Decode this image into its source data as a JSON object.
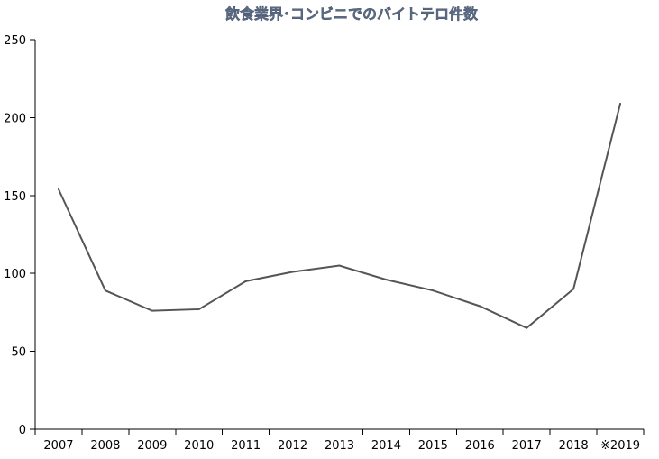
{
  "chart_data": {
    "type": "line",
    "title": "飲食業界･コンビニでのバイトテロ件数",
    "xlabel": "",
    "ylabel": "",
    "categories": [
      "2007",
      "2008",
      "2009",
      "2010",
      "2011",
      "2012",
      "2013",
      "2014",
      "2015",
      "2016",
      "2017",
      "2018",
      "※2019"
    ],
    "series": [
      {
        "values": [
          154,
          89,
          76,
          77,
          95,
          101,
          105,
          96,
          89,
          79,
          65,
          90,
          209
        ]
      }
    ],
    "ylim": [
      0,
      250
    ],
    "yticks": [
      "0",
      "50",
      "100",
      "150",
      "200",
      "250"
    ],
    "grid": false,
    "legend": "none",
    "line_color": "#555555",
    "title_color": "#5a6a82"
  }
}
